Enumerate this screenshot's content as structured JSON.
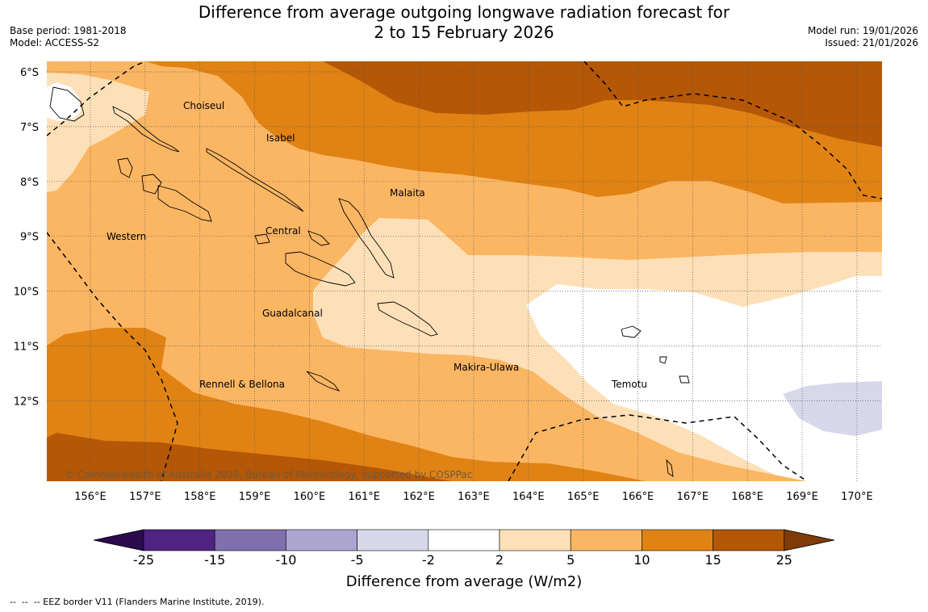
{
  "header": {
    "title_line1": "Difference from average outgoing longwave radiation forecast for",
    "title_line2": "2 to 15 February 2026",
    "base_period": "Base period: 1981-2018",
    "model": "Model: ACCESS-S2",
    "model_run": "Model run: 19/01/2026",
    "issued": "Issued: 21/01/2026"
  },
  "map": {
    "lat_labels": [
      "6°S",
      "7°S",
      "8°S",
      "9°S",
      "10°S",
      "11°S",
      "12°S"
    ],
    "lon_labels": [
      "156°E",
      "157°E",
      "158°E",
      "159°E",
      "160°E",
      "161°E",
      "162°E",
      "163°E",
      "164°E",
      "165°E",
      "166°E",
      "167°E",
      "168°E",
      "169°E",
      "170°E"
    ],
    "regions": [
      "Choiseul",
      "Isabel",
      "Malaita",
      "Western",
      "Central",
      "Guadalcanal",
      "Makira-Ulawa",
      "Rennell & Bellona",
      "Temotu"
    ],
    "copyright": "© Commonwealth of Australia 2026, Bureau of Meteorology, supported by COSPPac"
  },
  "legend": {
    "ticks": [
      "-25",
      "-15",
      "-10",
      "-5",
      "-2",
      "2",
      "5",
      "10",
      "15",
      "25"
    ],
    "colors": [
      "#4f2382",
      "#7f6fac",
      "#aca5d0",
      "#d8d8eb",
      "#ffffff",
      "#fde0b8",
      "#fbb664",
      "#e08314",
      "#b45706"
    ],
    "extend_low_color": "#2d0a4e",
    "extend_high_color": "#7f3b08",
    "label": "Difference from average (W/m2)"
  },
  "footer": {
    "eez_note": "--  --  -- EEZ border V11 (Flanders Marine Institute, 2019)."
  }
}
